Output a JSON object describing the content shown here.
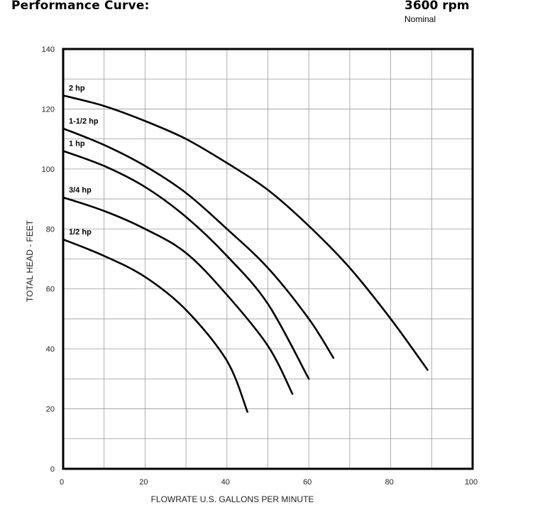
{
  "header": {
    "title": "Performance Curve:",
    "speed": "3600 rpm",
    "speed_note": "Nominal"
  },
  "chart_data": {
    "type": "line",
    "title": "Performance Curve:",
    "xlabel": "FLOWRATE U.S. GALLONS PER MINUTE",
    "ylabel": "TOTAL HEAD - FEET",
    "xlim": [
      0,
      100
    ],
    "ylim": [
      0,
      140
    ],
    "xticks": [
      0,
      20,
      40,
      60,
      80,
      100
    ],
    "yticks": [
      0,
      20,
      40,
      60,
      80,
      100,
      120,
      140
    ],
    "grid": true,
    "series": [
      {
        "name": "2 hp",
        "x": [
          0,
          10,
          20,
          30,
          40,
          50,
          60,
          70,
          80,
          89
        ],
        "y": [
          124.5,
          121,
          116,
          110,
          102,
          93,
          81,
          67,
          50,
          33
        ]
      },
      {
        "name": "1-1/2 hp",
        "x": [
          0,
          10,
          20,
          30,
          40,
          50,
          60,
          66
        ],
        "y": [
          113.5,
          108,
          101,
          92,
          80,
          67,
          50,
          37
        ]
      },
      {
        "name": "1 hp",
        "x": [
          0,
          10,
          20,
          30,
          40,
          50,
          60
        ],
        "y": [
          106,
          101,
          94,
          84,
          71,
          55,
          30
        ]
      },
      {
        "name": "3/4 hp",
        "x": [
          0,
          10,
          20,
          30,
          40,
          50,
          56
        ],
        "y": [
          90.5,
          86,
          80,
          72,
          58,
          41,
          25
        ]
      },
      {
        "name": "1/2 hp",
        "x": [
          0,
          10,
          20,
          30,
          40,
          45
        ],
        "y": [
          76.5,
          71,
          64,
          53,
          36,
          19
        ]
      }
    ]
  }
}
